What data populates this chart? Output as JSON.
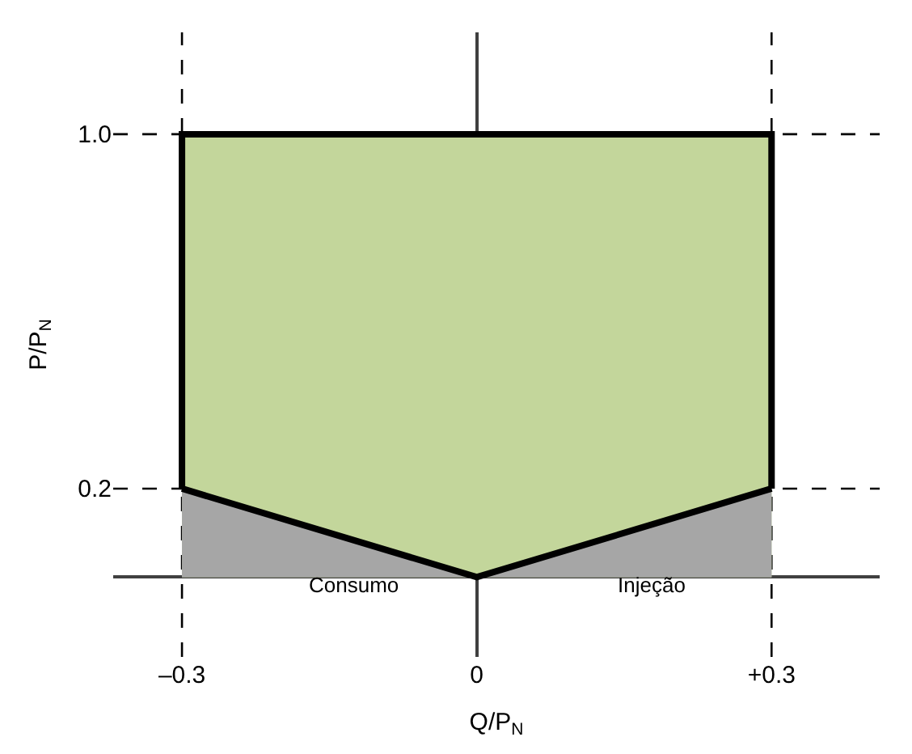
{
  "chart_data": {
    "type": "area",
    "xlabel": "Q/P$_{N}$",
    "ylabel": "P/P$_{N}$",
    "xlim": [
      -0.37,
      0.41
    ],
    "ylim": [
      -0.18,
      1.23
    ],
    "xticks": [
      {
        "value": -0.3,
        "label": "–0.3"
      },
      0,
      {
        "value": 0.3,
        "label": "+0.3"
      }
    ],
    "yticks": [
      0.2,
      {
        "value": 1,
        "label": "1.0"
      }
    ],
    "series": [
      {
        "color": "#c3d69b",
        "x": [
          -0.3,
          0.3
        ],
        "values": [
          1,
          1
        ]
      },
      {
        "color": "#a6a6a6",
        "x": [
          -0.3,
          0
        ],
        "values": [
          0.2,
          0
        ]
      },
      {
        "color": "#a6a6a6",
        "x": [
          0,
          0.3
        ],
        "values": [
          0,
          0.2
        ]
      },
      {
        "type": "line",
        "color": "#000000",
        "x": [
          -0.3,
          -0.3,
          0.3,
          0.3
        ],
        "values": [
          0.2,
          1,
          1,
          0.2
        ]
      },
      {
        "type": "line",
        "color": "#000000",
        "x": [
          -0.3,
          0,
          0.3
        ],
        "values": [
          0.2,
          0,
          0.2
        ]
      }
    ],
    "ref_lines": [
      {
        "axis": "x",
        "value": -0.3,
        "line_style": "dashed"
      },
      {
        "axis": "x",
        "value": 0.3,
        "line_style": "dashed"
      },
      {
        "axis": "y",
        "value": 1,
        "line_style": "dashed"
      },
      {
        "axis": "y",
        "value": 0.2,
        "line_style": "dashed"
      }
    ],
    "annotations": [
      "Consumo",
      "Injeção"
    ],
    "grid": false
  }
}
